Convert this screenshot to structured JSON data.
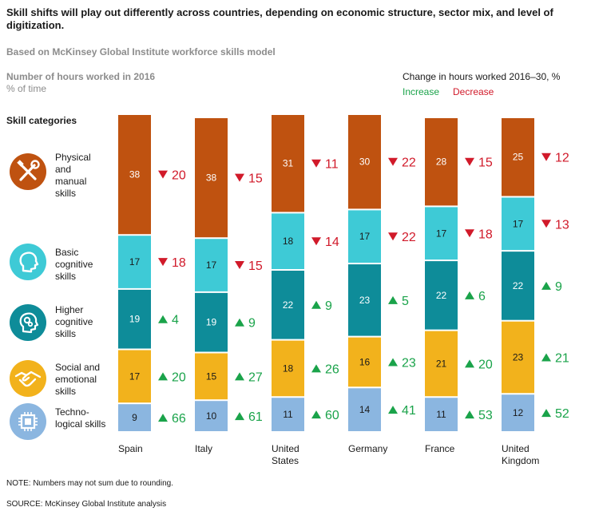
{
  "title": "Skill shifts will play out differently across countries, depending on economic structure, sector mix, and level of digitization.",
  "subtitle": "Based on McKinsey Global Institute workforce skills model",
  "left_header": {
    "line1": "Number of hours worked in 2016",
    "line2": "% of time"
  },
  "right_header": {
    "title": "Change in hours worked 2016–30, %",
    "increase": "Increase",
    "decrease": "Decrease"
  },
  "skill_header": "Skill categories",
  "note": "NOTE: Numbers may not sum due to rounding.",
  "source": "SOURCE:  McKinsey Global Institute analysis",
  "colors": {
    "physical": "#bf5210",
    "basic": "#3ecad6",
    "higher": "#0e8c99",
    "social": "#f2b21c",
    "tech": "#8bb6e0",
    "increase": "#1aa34a",
    "decrease": "#d11a2a"
  },
  "categories": [
    {
      "label_lines": [
        "Physical",
        "and",
        "manual",
        "skills"
      ],
      "icon": "tools-icon"
    },
    {
      "label_lines": [
        "Basic",
        "cognitive",
        "skills"
      ],
      "icon": "head-icon"
    },
    {
      "label_lines": [
        "Higher",
        "cognitive",
        "skills"
      ],
      "icon": "head-gears-icon"
    },
    {
      "label_lines": [
        "Social and",
        "emotional",
        "skills"
      ],
      "icon": "handshake-icon"
    },
    {
      "label_lines": [
        "Techno-",
        "logical skills"
      ],
      "icon": "microchip-icon"
    }
  ],
  "chart_data": {
    "type": "stacked-bar",
    "y_unit": "% of time",
    "categories": [
      [
        "Spain"
      ],
      [
        "Italy"
      ],
      [
        "United",
        "States"
      ],
      [
        "Germany"
      ],
      [
        "France"
      ],
      [
        "United",
        "Kingdom"
      ]
    ],
    "series": [
      {
        "name": "Physical and manual skills",
        "color_key": "physical",
        "values": [
          38,
          38,
          31,
          30,
          28,
          25
        ],
        "change": [
          -20,
          -15,
          -11,
          -22,
          -15,
          -12
        ]
      },
      {
        "name": "Basic cognitive skills",
        "color_key": "basic",
        "values": [
          17,
          17,
          18,
          17,
          17,
          17
        ],
        "change": [
          -18,
          -15,
          -14,
          -22,
          -18,
          -13
        ]
      },
      {
        "name": "Higher cognitive skills",
        "color_key": "higher",
        "values": [
          19,
          19,
          22,
          23,
          22,
          22
        ],
        "change": [
          4,
          9,
          9,
          5,
          6,
          9
        ]
      },
      {
        "name": "Social and emotional skills",
        "color_key": "social",
        "values": [
          17,
          15,
          18,
          16,
          21,
          23
        ],
        "change": [
          20,
          27,
          26,
          23,
          20,
          21
        ]
      },
      {
        "name": "Technological skills",
        "color_key": "tech",
        "values": [
          9,
          10,
          11,
          14,
          11,
          12
        ],
        "change": [
          66,
          61,
          60,
          41,
          53,
          52
        ]
      }
    ]
  }
}
